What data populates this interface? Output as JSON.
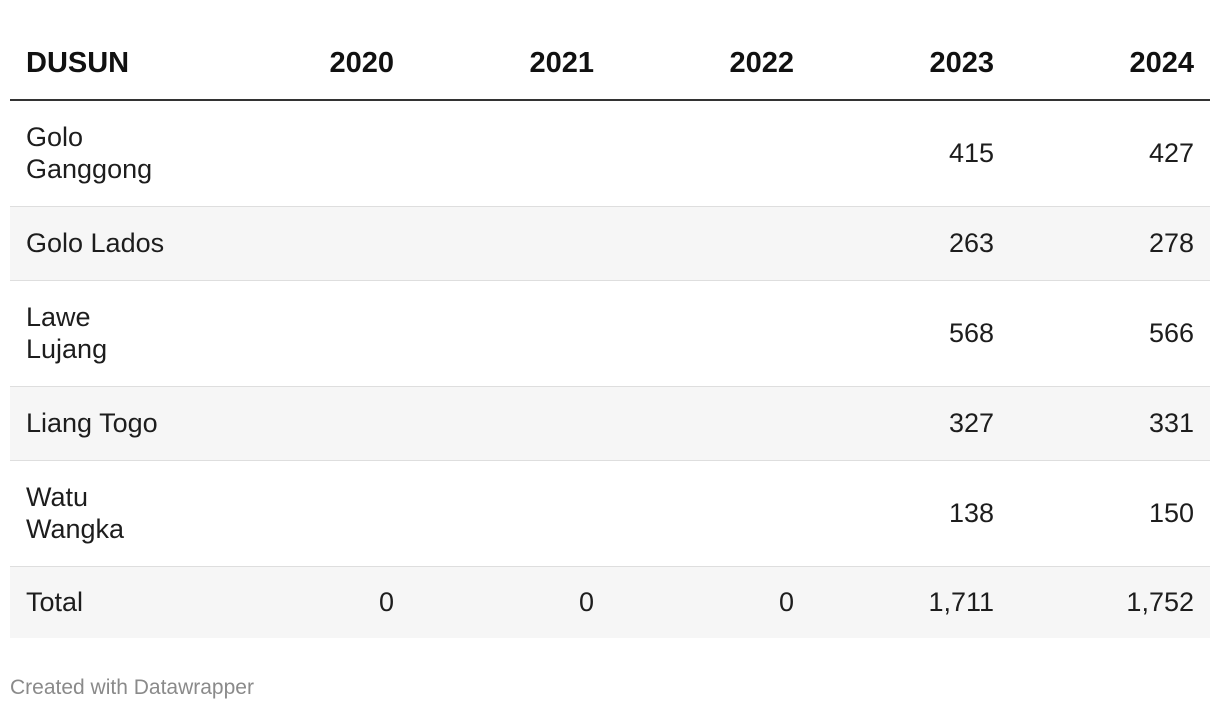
{
  "chart_data": {
    "type": "table",
    "columns": [
      "DUSUN",
      "2020",
      "2021",
      "2022",
      "2023",
      "2024"
    ],
    "rows": [
      {
        "dusun": "Golo Ganggong",
        "values": [
          "",
          "",
          "",
          "415",
          "427"
        ]
      },
      {
        "dusun": "Golo Lados",
        "values": [
          "",
          "",
          "",
          "263",
          "278"
        ]
      },
      {
        "dusun": "Lawe Lujang",
        "values": [
          "",
          "",
          "",
          "568",
          "566"
        ]
      },
      {
        "dusun": "Liang Togo",
        "values": [
          "",
          "",
          "",
          "327",
          "331"
        ]
      },
      {
        "dusun": "Watu Wangka",
        "values": [
          "",
          "",
          "",
          "138",
          "150"
        ]
      }
    ],
    "total": {
      "label": "Total",
      "values": [
        "0",
        "0",
        "0",
        "1,711",
        "1,752"
      ]
    }
  },
  "footer": {
    "credit": "Created with Datawrapper"
  }
}
